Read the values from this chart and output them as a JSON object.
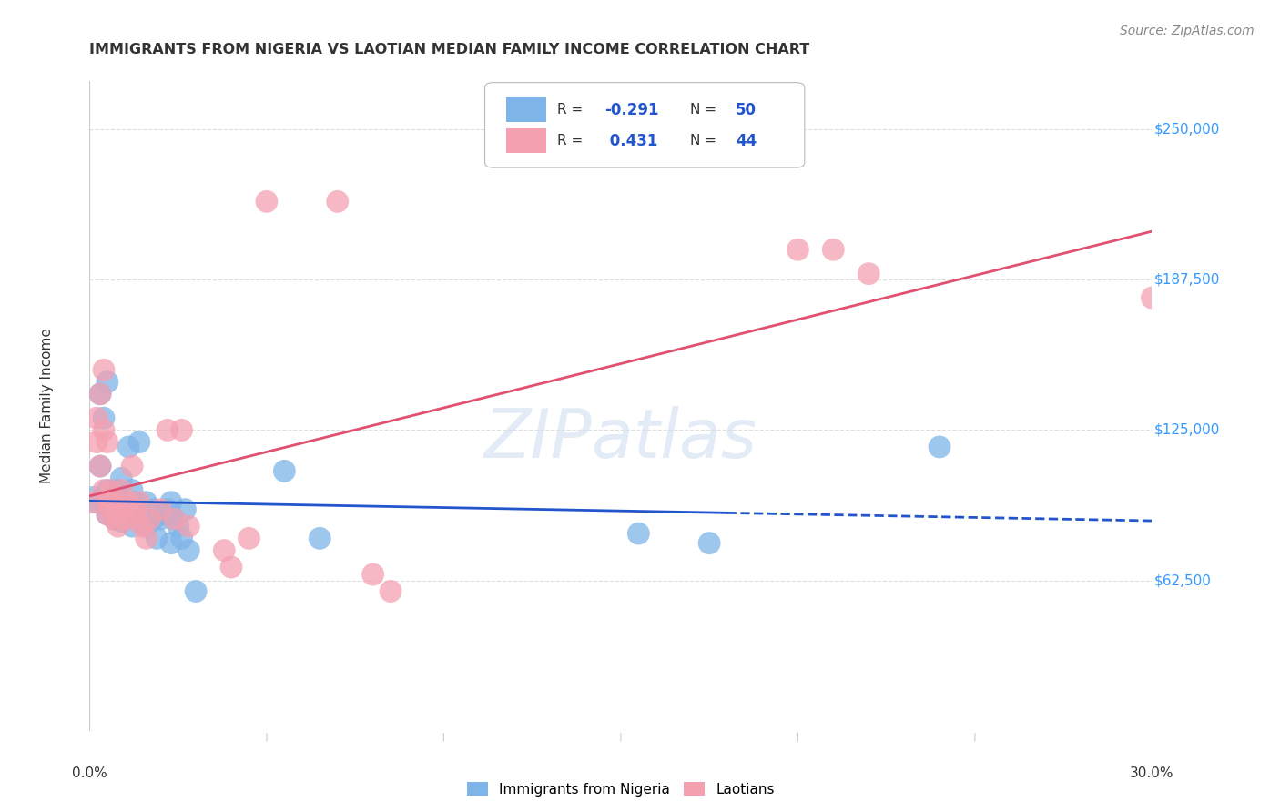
{
  "title": "IMMIGRANTS FROM NIGERIA VS LAOTIAN MEDIAN FAMILY INCOME CORRELATION CHART",
  "source": "Source: ZipAtlas.com",
  "ylabel": "Median Family Income",
  "y_ticks": [
    62500,
    125000,
    187500,
    250000
  ],
  "y_tick_labels": [
    "$62,500",
    "$125,000",
    "$187,500",
    "$250,000"
  ],
  "xlim": [
    0.0,
    0.3
  ],
  "ylim": [
    0,
    270000
  ],
  "legend_label_blue": "Immigrants from Nigeria",
  "legend_label_pink": "Laotians",
  "blue_color": "#7eb5e8",
  "pink_color": "#f4a0b0",
  "blue_line_color": "#2255cc",
  "pink_line_color": "#e05070",
  "background_color": "#ffffff",
  "grid_color": "#dddddd",
  "nigeria_x": [
    0.001,
    0.002,
    0.003,
    0.003,
    0.004,
    0.004,
    0.005,
    0.005,
    0.005,
    0.006,
    0.006,
    0.007,
    0.007,
    0.008,
    0.008,
    0.009,
    0.009,
    0.01,
    0.01,
    0.011,
    0.011,
    0.012,
    0.012,
    0.013,
    0.013,
    0.014,
    0.015,
    0.015,
    0.016,
    0.016,
    0.017,
    0.018,
    0.018,
    0.019,
    0.02,
    0.021,
    0.022,
    0.023,
    0.023,
    0.024,
    0.025,
    0.026,
    0.027,
    0.028,
    0.03,
    0.055,
    0.065,
    0.155,
    0.175,
    0.24
  ],
  "nigeria_y": [
    97000,
    95000,
    140000,
    110000,
    130000,
    95000,
    145000,
    100000,
    90000,
    92000,
    95000,
    98000,
    88000,
    92000,
    100000,
    105000,
    87000,
    95000,
    88000,
    118000,
    92000,
    100000,
    85000,
    92000,
    95000,
    120000,
    88000,
    92000,
    95000,
    85000,
    90000,
    88000,
    92000,
    80000,
    88000,
    90000,
    92000,
    95000,
    78000,
    88000,
    85000,
    80000,
    92000,
    75000,
    58000,
    108000,
    80000,
    82000,
    78000,
    118000
  ],
  "laotian_x": [
    0.001,
    0.002,
    0.002,
    0.003,
    0.003,
    0.004,
    0.004,
    0.004,
    0.005,
    0.005,
    0.005,
    0.006,
    0.006,
    0.007,
    0.007,
    0.008,
    0.008,
    0.009,
    0.01,
    0.01,
    0.011,
    0.012,
    0.013,
    0.013,
    0.014,
    0.015,
    0.016,
    0.017,
    0.02,
    0.022,
    0.024,
    0.026,
    0.028,
    0.038,
    0.04,
    0.045,
    0.05,
    0.07,
    0.08,
    0.085,
    0.2,
    0.21,
    0.22,
    0.3
  ],
  "laotian_y": [
    95000,
    130000,
    120000,
    140000,
    110000,
    150000,
    125000,
    100000,
    120000,
    95000,
    90000,
    100000,
    92000,
    88000,
    95000,
    85000,
    90000,
    100000,
    88000,
    92000,
    95000,
    110000,
    88000,
    92000,
    95000,
    85000,
    80000,
    88000,
    92000,
    125000,
    88000,
    125000,
    85000,
    75000,
    68000,
    80000,
    220000,
    220000,
    65000,
    58000,
    200000,
    200000,
    190000,
    180000
  ]
}
